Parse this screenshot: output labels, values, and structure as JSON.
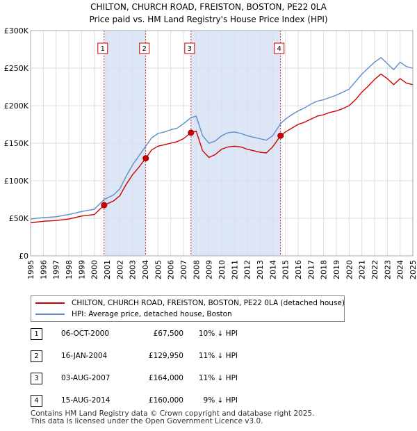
{
  "chart_data": {
    "type": "line",
    "title": "CHILTON, CHURCH ROAD, FREISTON, BOSTON, PE22 0LA",
    "subtitle": "Price paid vs. HM Land Registry's House Price Index (HPI)",
    "xlabel": "",
    "ylabel": "",
    "xlim": [
      1995,
      2025
    ],
    "ylim": [
      0,
      300000
    ],
    "x_ticks": [
      1995,
      1996,
      1997,
      1998,
      1999,
      2000,
      2001,
      2002,
      2003,
      2004,
      2005,
      2006,
      2007,
      2008,
      2009,
      2010,
      2011,
      2012,
      2013,
      2014,
      2015,
      2016,
      2017,
      2018,
      2019,
      2020,
      2021,
      2022,
      2023,
      2024,
      2025
    ],
    "y_ticks": [
      {
        "value": 0,
        "label": "£0"
      },
      {
        "value": 50000,
        "label": "£50K"
      },
      {
        "value": 100000,
        "label": "£100K"
      },
      {
        "value": 150000,
        "label": "£150K"
      },
      {
        "value": 200000,
        "label": "£200K"
      },
      {
        "value": 250000,
        "label": "£250K"
      },
      {
        "value": 300000,
        "label": "£300K"
      }
    ],
    "grid": true,
    "series": [
      {
        "name": "CHILTON, CHURCH ROAD, FREISTON, BOSTON, PE22 0LA (detached house)",
        "color": "#cc0000",
        "x": [
          1995.0,
          1996.0,
          1997.0,
          1998.0,
          1999.0,
          2000.0,
          2000.77,
          2001.5,
          2002.0,
          2002.5,
          2003.0,
          2003.5,
          2004.04,
          2004.5,
          2005.0,
          2005.5,
          2006.0,
          2006.5,
          2007.0,
          2007.59,
          2008.0,
          2008.5,
          2009.0,
          2009.5,
          2010.0,
          2010.5,
          2011.0,
          2011.5,
          2012.0,
          2012.5,
          2013.0,
          2013.5,
          2014.0,
          2014.62,
          2015.0,
          2015.5,
          2016.0,
          2016.5,
          2017.0,
          2017.5,
          2018.0,
          2018.5,
          2019.0,
          2019.5,
          2020.0,
          2020.5,
          2021.0,
          2021.5,
          2022.0,
          2022.5,
          2023.0,
          2023.5,
          2024.0,
          2024.5,
          2025.0
        ],
        "values": [
          44000,
          46000,
          47000,
          49000,
          53000,
          55000,
          67500,
          73000,
          80000,
          95000,
          108000,
          118000,
          129950,
          141000,
          146000,
          148000,
          150000,
          152000,
          156000,
          164000,
          166000,
          140000,
          131000,
          135000,
          142000,
          145000,
          146000,
          145000,
          142000,
          140000,
          138000,
          137000,
          145000,
          160000,
          165000,
          170000,
          175000,
          178000,
          182000,
          186000,
          188000,
          191000,
          193000,
          196000,
          200000,
          208000,
          218000,
          226000,
          235000,
          242000,
          236000,
          228000,
          236000,
          230000,
          228000
        ]
      },
      {
        "name": "HPI: Average price, detached house, Boston",
        "color": "#5b8dc9",
        "x": [
          1995.0,
          1996.0,
          1997.0,
          1998.0,
          1999.0,
          2000.0,
          2000.77,
          2001.5,
          2002.0,
          2002.5,
          2003.0,
          2003.5,
          2004.04,
          2004.5,
          2005.0,
          2005.5,
          2006.0,
          2006.5,
          2007.0,
          2007.59,
          2008.0,
          2008.5,
          2009.0,
          2009.5,
          2010.0,
          2010.5,
          2011.0,
          2011.5,
          2012.0,
          2012.5,
          2013.0,
          2013.5,
          2014.0,
          2014.62,
          2015.0,
          2015.5,
          2016.0,
          2016.5,
          2017.0,
          2017.5,
          2018.0,
          2018.5,
          2019.0,
          2019.5,
          2020.0,
          2020.5,
          2021.0,
          2021.5,
          2022.0,
          2022.5,
          2023.0,
          2023.5,
          2024.0,
          2024.5,
          2025.0
        ],
        "values": [
          49000,
          51000,
          52000,
          55000,
          59000,
          62000,
          75000,
          81000,
          89000,
          106000,
          121000,
          133000,
          146000,
          157000,
          163000,
          165000,
          168000,
          170000,
          176000,
          184000,
          186000,
          160000,
          150000,
          153000,
          160000,
          164000,
          165000,
          163000,
          160000,
          158000,
          156000,
          154000,
          160000,
          176000,
          182000,
          188000,
          193000,
          197000,
          202000,
          206000,
          208000,
          211000,
          214000,
          218000,
          222000,
          232000,
          242000,
          250000,
          258000,
          264000,
          256000,
          248000,
          258000,
          252000,
          250000
        ]
      }
    ],
    "sales": [
      {
        "num": "1",
        "x": 2000.77,
        "price": 67500
      },
      {
        "num": "2",
        "x": 2004.04,
        "price": 129950
      },
      {
        "num": "3",
        "x": 2007.59,
        "price": 164000
      },
      {
        "num": "4",
        "x": 2014.62,
        "price": 160000
      }
    ],
    "shaded_spans": [
      [
        2000.77,
        2004.04
      ],
      [
        2007.59,
        2014.62
      ]
    ],
    "colors": {
      "shade": "#dde6f7",
      "marker_border": "#cc0000",
      "grid": "#dddddd"
    }
  },
  "legend": {
    "series1": "CHILTON, CHURCH ROAD, FREISTON, BOSTON, PE22 0LA (detached house)",
    "series2": "HPI: Average price, detached house, Boston"
  },
  "sales_table": [
    {
      "num": "1",
      "date": "06-OCT-2000",
      "price": "£67,500",
      "hpi": "10% ↓ HPI"
    },
    {
      "num": "2",
      "date": "16-JAN-2004",
      "price": "£129,950",
      "hpi": "11% ↓ HPI"
    },
    {
      "num": "3",
      "date": "03-AUG-2007",
      "price": "£164,000",
      "hpi": "11% ↓ HPI"
    },
    {
      "num": "4",
      "date": "15-AUG-2014",
      "price": "£160,000",
      "hpi": "9% ↓ HPI"
    }
  ],
  "footer": {
    "line1": "Contains HM Land Registry data © Crown copyright and database right 2025.",
    "line2": "This data is licensed under the Open Government Licence v3.0."
  }
}
